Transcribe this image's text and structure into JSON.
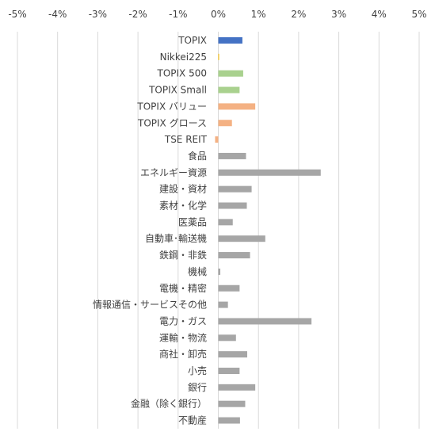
{
  "chart_data": {
    "type": "bar",
    "orientation": "horizontal",
    "xlim": [
      -5,
      5
    ],
    "x_ticks": [
      "-5%",
      "-4%",
      "-3%",
      "-2%",
      "-1%",
      "0%",
      "1%",
      "2%",
      "3%",
      "4%",
      "5%"
    ],
    "x_tick_values": [
      -5,
      -4,
      -3,
      -2,
      -1,
      0,
      1,
      2,
      3,
      4,
      5
    ],
    "axis_position": "top",
    "grid": "vertical",
    "legend": "none",
    "categories": [
      "TOPIX",
      "Nikkei225",
      "TOPIX 500",
      "TOPIX Small",
      "TOPIX バリュー",
      "TOPIX グロース",
      "TSE REIT",
      "食品",
      "エネルギー資源",
      "建設・資材",
      "素材・化学",
      "医薬品",
      "自動車･輸送機",
      "鉄鋼・非鉄",
      "機械",
      "電機・精密",
      "情報通信・サービスその他",
      "電力・ガス",
      "運輸・物流",
      "商社・卸売",
      "小売",
      "銀行",
      "金融（除く銀行）",
      "不動産"
    ],
    "values": [
      0.6,
      0.02,
      0.62,
      0.53,
      0.92,
      0.34,
      -0.08,
      0.69,
      2.55,
      0.83,
      0.71,
      0.36,
      1.17,
      0.79,
      0.05,
      0.53,
      0.24,
      2.32,
      0.44,
      0.72,
      0.53,
      0.92,
      0.67,
      0.54
    ],
    "bar_colors": [
      "#4472c4",
      "#ffc000",
      "#a9d18e",
      "#a9d18e",
      "#f4b183",
      "#f4b183",
      "#f4b183",
      "#a6a6a6",
      "#a6a6a6",
      "#a6a6a6",
      "#a6a6a6",
      "#a6a6a6",
      "#a6a6a6",
      "#a6a6a6",
      "#a6a6a6",
      "#a6a6a6",
      "#a6a6a6",
      "#a6a6a6",
      "#a6a6a6",
      "#a6a6a6",
      "#a6a6a6",
      "#a6a6a6",
      "#a6a6a6",
      "#a6a6a6"
    ],
    "grid_color": "#d9d9d9",
    "text_color": "#404040"
  }
}
